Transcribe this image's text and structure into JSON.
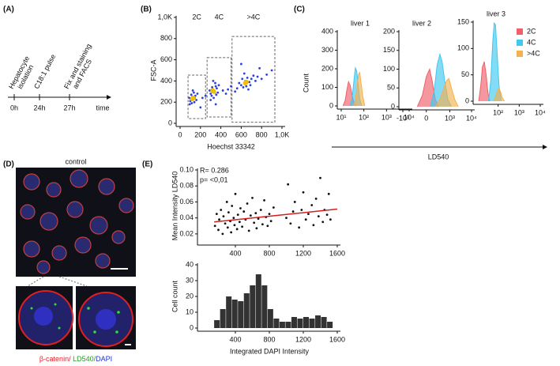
{
  "panel_labels": [
    "(A)",
    "(B)",
    "(C)",
    "(D)",
    "(E)"
  ],
  "timeline": {
    "steps": [
      {
        "label": [
          "Hepatocyte",
          "isolation"
        ],
        "time": "0h"
      },
      {
        "label": [
          "C18:1 pulse"
        ],
        "time": "24h"
      },
      {
        "label": [
          "Fix and staining",
          "and FACS"
        ],
        "time": "27h"
      }
    ],
    "axis_label": "time"
  },
  "microscopy": {
    "title": "control",
    "caption": [
      {
        "text": "β-catenin/",
        "color": "#e8202a"
      },
      {
        "text": " LD540/",
        "color": "#22a022"
      },
      {
        "text": "DAPI",
        "color": "#2233cc"
      }
    ]
  },
  "chart_data": [
    {
      "type": "scatter",
      "xlabel": "Hoechst 33342",
      "ylabel": "FSC-A",
      "xlim": [
        0,
        1000
      ],
      "ylim": [
        0,
        1000
      ],
      "xticks": [
        0,
        200,
        400,
        600,
        800,
        {
          "value": 1000,
          "label": "1,0K"
        }
      ],
      "yticks": [
        0,
        200,
        400,
        600,
        800,
        {
          "value": 1000,
          "label": "1,0K"
        }
      ],
      "gates": [
        {
          "label": "2C",
          "x": [
            78,
            250
          ],
          "y": [
            45,
            455
          ]
        },
        {
          "label": "4C",
          "x": [
            265,
            500
          ],
          "y": [
            60,
            620
          ]
        },
        {
          "label": ">4C",
          "x": [
            510,
            930
          ],
          "y": [
            10,
            820
          ]
        }
      ],
      "series": [
        {
          "color": "#2b3fe0",
          "x": [
            100,
            120,
            140,
            110,
            130,
            90,
            150,
            115,
            135,
            105,
            160,
            125,
            95,
            145,
            170,
            300,
            320,
            340,
            360,
            310,
            350,
            330,
            290,
            370,
            345,
            315,
            380,
            325,
            300,
            355,
            600,
            640,
            680,
            620,
            660,
            700,
            580,
            650,
            720,
            610,
            690,
            740,
            630,
            670,
            760,
            560,
            800,
            850,
            540,
            470,
            450,
            500,
            220,
            250,
            420,
            900,
            780,
            600,
            350,
            200
          ],
          "y": [
            210,
            250,
            200,
            270,
            230,
            240,
            260,
            190,
            290,
            230,
            220,
            310,
            180,
            240,
            280,
            280,
            320,
            290,
            330,
            260,
            350,
            240,
            310,
            290,
            380,
            340,
            360,
            400,
            220,
            270,
            360,
            400,
            390,
            340,
            430,
            420,
            380,
            350,
            450,
            420,
            360,
            400,
            470,
            320,
            440,
            330,
            420,
            460,
            300,
            320,
            280,
            350,
            240,
            260,
            310,
            500,
            520,
            560,
            180,
            150
          ]
        },
        {
          "color": "#f0c000",
          "x": [
            120,
            130,
            330,
            320,
            640,
            650
          ],
          "y": [
            230,
            240,
            300,
            310,
            380,
            390
          ]
        }
      ]
    },
    {
      "type": "area",
      "title": "liver 1",
      "ylabel": "Count",
      "xscale": "log",
      "xlim": [
        10,
        10000
      ],
      "ylim": [
        0,
        400
      ],
      "xticks": [
        {
          "value": 10,
          "label": "10¹"
        },
        {
          "value": 100,
          "label": "10²"
        },
        {
          "value": 1000,
          "label": "10³"
        },
        {
          "value": 10000,
          "label": "10⁴"
        }
      ],
      "yticks": [
        0,
        100,
        200,
        300,
        400
      ],
      "series": [
        {
          "color": "#f0606a",
          "x": [
            12,
            15,
            18,
            21,
            25,
            30,
            36,
            45
          ],
          "values": [
            0,
            30,
            90,
            130,
            110,
            60,
            20,
            0
          ]
        },
        {
          "color": "#40c8f0",
          "x": [
            25,
            30,
            36,
            42,
            48,
            56,
            65,
            80
          ],
          "values": [
            0,
            40,
            130,
            205,
            190,
            120,
            40,
            0
          ]
        },
        {
          "color": "#f5b050",
          "x": [
            35,
            42,
            50,
            58,
            66,
            76,
            90,
            110
          ],
          "values": [
            0,
            30,
            100,
            170,
            180,
            120,
            50,
            0
          ]
        }
      ]
    },
    {
      "type": "area",
      "title": "liver 2",
      "xlabel": "LD540",
      "xscale": "symlog",
      "xlim": [
        -1000,
        10000
      ],
      "ylim": [
        0,
        200
      ],
      "xticks": [
        {
          "value": -1000,
          "label": "-10³"
        },
        0,
        {
          "value": 1000,
          "label": "10³"
        },
        {
          "value": 10000,
          "label": "10⁴"
        }
      ],
      "yticks": [
        0,
        50,
        100,
        150,
        200
      ],
      "series": [
        {
          "color": "#f0606a",
          "x": [
            -150,
            -50,
            0,
            40,
            80,
            150,
            250
          ],
          "values": [
            0,
            30,
            80,
            100,
            70,
            20,
            0
          ]
        },
        {
          "color": "#40c8f0",
          "x": [
            50,
            120,
            200,
            300,
            400,
            550,
            800,
            1200
          ],
          "values": [
            0,
            40,
            110,
            140,
            120,
            70,
            20,
            0
          ]
        },
        {
          "color": "#f5b050",
          "x": [
            150,
            300,
            500,
            700,
            900,
            1200,
            1700,
            2500
          ],
          "values": [
            0,
            20,
            50,
            70,
            75,
            50,
            20,
            0
          ]
        }
      ]
    },
    {
      "type": "area",
      "title": "liver 3",
      "xscale": "log",
      "xlim": [
        10,
        10000
      ],
      "ylim": [
        0,
        150
      ],
      "legend": "upper right",
      "xticks": [
        {
          "value": 100,
          "label": "10²"
        },
        {
          "value": 1000,
          "label": "10³"
        },
        {
          "value": 10000,
          "label": "10⁴"
        }
      ],
      "yticks": [
        0,
        50,
        100,
        150
      ],
      "series": [
        {
          "name": "2C",
          "color": "#f0606a",
          "x": [
            12,
            15,
            18,
            22,
            27,
            33,
            40
          ],
          "values": [
            0,
            30,
            65,
            75,
            50,
            15,
            0
          ]
        },
        {
          "name": "4C",
          "color": "#40c8f0",
          "x": [
            35,
            45,
            55,
            65,
            75,
            90,
            110,
            140
          ],
          "values": [
            0,
            40,
            110,
            148,
            145,
            90,
            30,
            0
          ]
        },
        {
          "name": ">4C",
          "color": "#f5b050",
          "x": [
            60,
            75,
            90,
            110,
            130,
            160,
            200
          ],
          "values": [
            0,
            8,
            20,
            25,
            18,
            6,
            0
          ]
        }
      ]
    },
    {
      "type": "scatter",
      "ylabel": "Mean Intensity LD540",
      "annotations": [
        "R= 0.286",
        "p= <0,01"
      ],
      "xlim": [
        0,
        1600
      ],
      "ylim": [
        0.01,
        0.1
      ],
      "xticks": [
        400,
        800,
        1200,
        1600
      ],
      "yticks": [
        {
          "value": 0.02,
          "label": "0.02"
        },
        {
          "value": 0.04,
          "label": "0.04"
        },
        {
          "value": 0.06,
          "label": "0.06"
        },
        {
          "value": 0.08,
          "label": "0.08"
        },
        {
          "value": 0.1,
          "label": "0.10"
        }
      ],
      "fit": {
        "color": "#d02020",
        "x": [
          150,
          1600
        ],
        "y": [
          0.035,
          0.051
        ]
      },
      "series": [
        {
          "color": "#111111",
          "x": [
            160,
            180,
            200,
            210,
            230,
            250,
            260,
            280,
            300,
            310,
            320,
            340,
            350,
            360,
            380,
            390,
            400,
            420,
            430,
            450,
            460,
            480,
            500,
            520,
            540,
            560,
            580,
            600,
            620,
            640,
            650,
            670,
            700,
            720,
            740,
            760,
            780,
            800,
            820,
            850,
            1000,
            1020,
            1050,
            1080,
            1100,
            1150,
            1180,
            1200,
            1230,
            1260,
            1300,
            1320,
            1350,
            1380,
            1400,
            1430,
            1450,
            1480,
            1500,
            1520
          ],
          "y": [
            0.03,
            0.045,
            0.025,
            0.038,
            0.05,
            0.02,
            0.042,
            0.033,
            0.06,
            0.028,
            0.047,
            0.036,
            0.022,
            0.055,
            0.04,
            0.031,
            0.07,
            0.026,
            0.044,
            0.035,
            0.052,
            0.029,
            0.048,
            0.038,
            0.058,
            0.024,
            0.043,
            0.065,
            0.034,
            0.046,
            0.027,
            0.039,
            0.05,
            0.032,
            0.062,
            0.041,
            0.03,
            0.045,
            0.036,
            0.053,
            0.04,
            0.082,
            0.033,
            0.048,
            0.06,
            0.028,
            0.05,
            0.072,
            0.038,
            0.045,
            0.056,
            0.031,
            0.064,
            0.042,
            0.09,
            0.035,
            0.05,
            0.044,
            0.07,
            0.038
          ]
        }
      ]
    },
    {
      "type": "histogram",
      "ylabel": "Cell count",
      "xlabel": "Integrated DAPI Intensity",
      "color": "#333333",
      "xlim": [
        0,
        1600
      ],
      "ylim": [
        0,
        40
      ],
      "xticks": [
        400,
        800,
        1200,
        1600
      ],
      "yticks": [
        0,
        10,
        20,
        30,
        40
      ],
      "bins": [
        150,
        220,
        290,
        360,
        430,
        500,
        570,
        640,
        710,
        780,
        850,
        920,
        990,
        1060,
        1130,
        1200,
        1270,
        1340,
        1410,
        1480,
        1550
      ],
      "counts": [
        5,
        12,
        20,
        18,
        17,
        22,
        27,
        34,
        27,
        12,
        6,
        4,
        4,
        7,
        6,
        7,
        6,
        8,
        7,
        4
      ]
    }
  ]
}
